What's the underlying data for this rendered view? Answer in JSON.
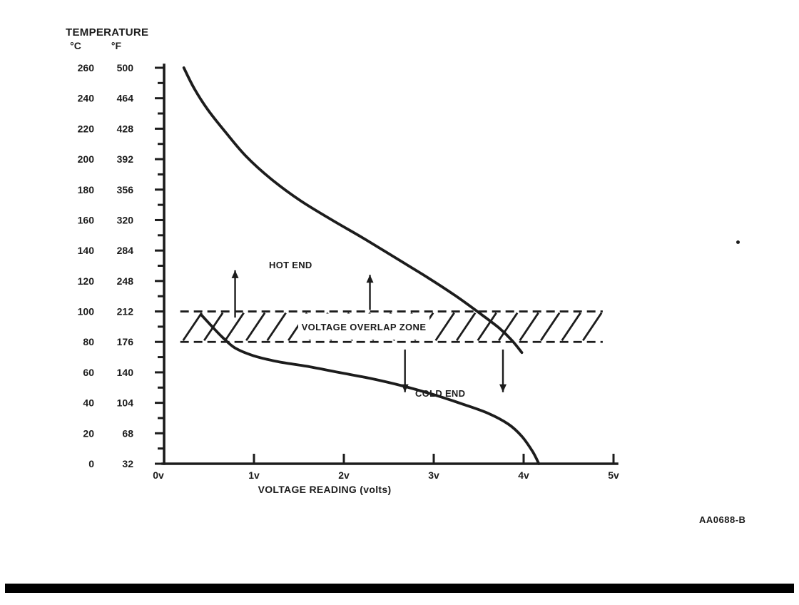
{
  "figure": {
    "number": "AA0688-B"
  },
  "chart_data": {
    "type": "line",
    "title": "TEMPERATURE",
    "xlabel": "VOLTAGE READING (volts)",
    "ylabel_units": [
      "°C",
      "°F"
    ],
    "xlim": [
      0,
      5
    ],
    "ylim_c": [
      0,
      260
    ],
    "x_ticks": [
      "0v",
      "1v",
      "2v",
      "3v",
      "4v",
      "5v"
    ],
    "x_tick_values": [
      0,
      1,
      2,
      3,
      4,
      5
    ],
    "y_ticks_c": [
      260,
      240,
      220,
      200,
      180,
      160,
      140,
      120,
      100,
      80,
      60,
      40,
      20,
      0
    ],
    "y_ticks_f": [
      500,
      464,
      428,
      392,
      356,
      320,
      284,
      248,
      212,
      176,
      140,
      104,
      68,
      32
    ],
    "overlap_zone": {
      "label": "VOLTAGE OVERLAP ZONE",
      "y_range_c": [
        80,
        100
      ],
      "x_range_v": [
        0.18,
        4.88
      ]
    },
    "series": [
      {
        "name": "HOT END",
        "x": [
          0.22,
          0.33,
          0.48,
          0.68,
          0.91,
          1.19,
          1.51,
          1.87,
          2.22,
          2.58,
          2.94,
          3.25,
          3.53,
          3.73,
          3.87,
          3.98
        ],
        "y": [
          260,
          247,
          233,
          218,
          202,
          187,
          173,
          160,
          148,
          135,
          122,
          110,
          98,
          89,
          81,
          73
        ]
      },
      {
        "name": "COLD END",
        "x": [
          0.41,
          0.52,
          0.65,
          0.79,
          0.99,
          1.27,
          1.59,
          1.94,
          2.3,
          2.66,
          3.02,
          3.33,
          3.61,
          3.83,
          3.98,
          4.1,
          4.17
        ],
        "y": [
          98,
          91,
          83,
          76,
          71,
          67,
          64,
          60,
          56,
          51,
          45,
          39,
          33,
          26,
          18,
          8,
          0
        ]
      }
    ],
    "arrows": [
      {
        "direction": "up",
        "x_v": 0.79,
        "y_from_c": 96,
        "y_to_c": 127
      },
      {
        "direction": "up",
        "x_v": 2.29,
        "y_from_c": 101,
        "y_to_c": 124
      },
      {
        "direction": "down",
        "x_v": 2.68,
        "y_from_c": 75,
        "y_to_c": 47
      },
      {
        "direction": "down",
        "x_v": 3.77,
        "y_from_c": 75,
        "y_to_c": 47
      }
    ]
  }
}
